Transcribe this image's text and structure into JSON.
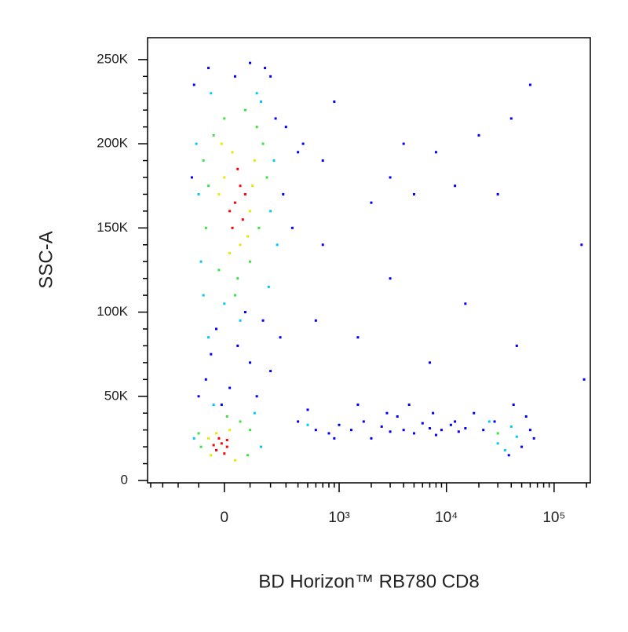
{
  "chart_data": {
    "type": "scatter",
    "x_label": "BD Horizon™ RB780 CD8",
    "y_label": "SSC-A",
    "xscale": "biexponential",
    "xlim": [
      -430,
      217000
    ],
    "ylim": [
      -1400,
      263000
    ],
    "xticks": [
      0,
      {
        "value": 1000,
        "label": "10³"
      },
      {
        "value": 10000,
        "label": "10⁴"
      },
      {
        "value": 100000,
        "label": "10⁵"
      }
    ],
    "xminorticks": [
      -400,
      -300,
      -200,
      -100,
      100,
      200,
      300,
      400,
      500,
      600,
      700,
      800,
      900,
      2000,
      3000,
      4000,
      5000,
      6000,
      7000,
      8000,
      9000,
      20000,
      30000,
      40000,
      50000,
      60000,
      70000,
      80000,
      90000,
      200000
    ],
    "yticks": [
      0,
      {
        "value": 50000,
        "label": "50K"
      },
      {
        "value": 100000,
        "label": "100K"
      },
      {
        "value": 150000,
        "label": "150K"
      },
      {
        "value": 200000,
        "label": "200K"
      },
      {
        "value": 250000,
        "label": "250K"
      }
    ],
    "yminorticks": [
      10000,
      20000,
      30000,
      40000,
      60000,
      70000,
      80000,
      90000,
      110000,
      120000,
      130000,
      140000,
      160000,
      170000,
      180000,
      190000,
      210000,
      220000,
      230000,
      240000
    ],
    "series": [
      {
        "color": "#0000ff",
        "x": [
          -30,
          50,
          100,
          -70,
          160,
          20,
          -50,
          130,
          80,
          200,
          -10,
          260,
          -100,
          40,
          170,
          230,
          -130,
          280,
          300,
          -120,
          200,
          350,
          -60,
          100,
          400,
          400,
          600,
          800,
          1000,
          1300,
          1700,
          2000,
          2500,
          3000,
          3500,
          4000,
          5000,
          6000,
          7000,
          8000,
          9000,
          11000,
          13000,
          15000,
          18000,
          22000,
          500,
          900,
          1500,
          2800,
          4500,
          7500,
          12000,
          50000,
          60000,
          28000,
          55000,
          38000,
          65000,
          42000,
          700,
          2000,
          3000,
          5000,
          8000,
          15000,
          20000,
          40000,
          45000,
          60000,
          180000,
          1500,
          4000,
          900,
          190000,
          700,
          12000,
          30000,
          600,
          450,
          3000,
          7000
        ],
        "y": [
          90000,
          80000,
          70000,
          60000,
          95000,
          55000,
          75000,
          50000,
          100000,
          65000,
          45000,
          85000,
          50000,
          240000,
          245000,
          215000,
          180000,
          170000,
          210000,
          235000,
          240000,
          150000,
          245000,
          248000,
          195000,
          35000,
          30000,
          28000,
          33000,
          30000,
          35000,
          25000,
          32000,
          29000,
          38000,
          30000,
          28000,
          34000,
          31000,
          27000,
          30000,
          33000,
          29000,
          31000,
          40000,
          30000,
          42000,
          25000,
          45000,
          40000,
          45000,
          40000,
          35000,
          20000,
          30000,
          35000,
          38000,
          15000,
          25000,
          45000,
          140000,
          165000,
          180000,
          170000,
          195000,
          105000,
          205000,
          215000,
          80000,
          235000,
          140000,
          85000,
          200000,
          225000,
          60000,
          190000,
          175000,
          170000,
          95000,
          200000,
          120000,
          70000
        ]
      },
      {
        "color": "#00c8ff",
        "x": [
          -100,
          200,
          -90,
          220,
          -50,
          150,
          -110,
          240,
          0,
          190,
          -80,
          130,
          60,
          -60,
          120,
          -120,
          150,
          -40,
          30000,
          40000,
          25000,
          35000,
          45000,
          500
        ],
        "y": [
          170000,
          160000,
          130000,
          190000,
          230000,
          225000,
          200000,
          140000,
          105000,
          115000,
          110000,
          230000,
          95000,
          85000,
          40000,
          25000,
          20000,
          45000,
          22000,
          32000,
          35000,
          18000,
          26000,
          33000
        ]
      },
      {
        "color": "#40e040",
        "x": [
          -60,
          140,
          -40,
          160,
          0,
          100,
          -70,
          130,
          50,
          -20,
          180,
          80,
          -80,
          40,
          -90,
          60,
          -100,
          10,
          90,
          100,
          30000
        ],
        "y": [
          175000,
          150000,
          205000,
          200000,
          215000,
          130000,
          150000,
          210000,
          120000,
          125000,
          180000,
          220000,
          190000,
          110000,
          20000,
          35000,
          28000,
          38000,
          15000,
          30000,
          28000
        ]
      },
      {
        "color": "#e8e800",
        "x": [
          0,
          100,
          -20,
          120,
          90,
          30,
          60,
          -10,
          110,
          20,
          -50,
          20,
          -60,
          40,
          -30
        ],
        "y": [
          180000,
          160000,
          170000,
          190000,
          145000,
          195000,
          140000,
          200000,
          175000,
          135000,
          15000,
          30000,
          25000,
          12000,
          28000
        ]
      },
      {
        "color": "#ff0000",
        "x": [
          40,
          60,
          20,
          80,
          50,
          30,
          70,
          10,
          -10,
          -30,
          -20,
          0,
          -40,
          10
        ],
        "y": [
          165000,
          175000,
          160000,
          170000,
          185000,
          150000,
          155000,
          20000,
          22000,
          18000,
          25000,
          16000,
          21000,
          24000
        ]
      }
    ]
  }
}
